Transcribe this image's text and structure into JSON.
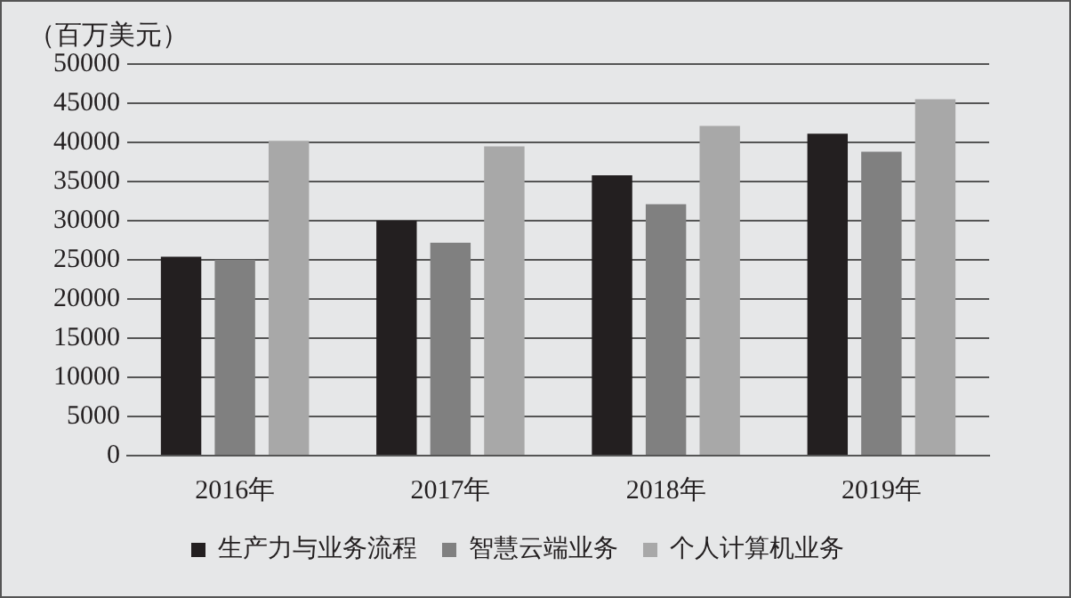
{
  "chart_data": {
    "type": "bar",
    "ylabel": "（百万美元）",
    "categories": [
      "2016年",
      "2017年",
      "2018年",
      "2019年"
    ],
    "series": [
      {
        "name": "生产力与业务流程",
        "color": "#231f20",
        "values": [
          25400,
          30000,
          35800,
          41100
        ]
      },
      {
        "name": "智慧云端业务",
        "color": "#808080",
        "values": [
          25000,
          27200,
          32100,
          38800
        ]
      },
      {
        "name": "个人计算机业务",
        "color": "#a8a8a8",
        "values": [
          40200,
          39500,
          42100,
          45500
        ]
      }
    ],
    "ylim": [
      0,
      50000
    ],
    "yticks": [
      0,
      5000,
      10000,
      15000,
      20000,
      25000,
      30000,
      35000,
      40000,
      45000,
      50000
    ],
    "grid": "y",
    "legend": "bottom"
  }
}
